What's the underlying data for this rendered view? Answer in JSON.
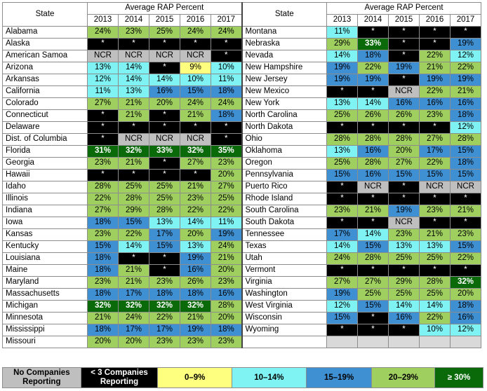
{
  "header": {
    "state_label": "State",
    "group_label": "Average RAP Percent",
    "years": [
      "2013",
      "2014",
      "2015",
      "2016",
      "2017"
    ]
  },
  "colors": {
    "ncr": "#bfbfbf",
    "lt3": "#000000",
    "b0": "#ffff7f",
    "b10": "#7ff3f3",
    "b15": "#3f8fd3",
    "b20": "#9fcf5f",
    "b30": "#0a6a0a"
  },
  "left_rows": [
    {
      "state": "Alabama",
      "values": [
        "24%",
        "23%",
        "25%",
        "24%",
        "24%"
      ]
    },
    {
      "state": "Alaska",
      "values": [
        "*",
        "*",
        "*",
        "*",
        "*"
      ]
    },
    {
      "state": "American Samoa",
      "values": [
        "NCR",
        "NCR",
        "NCR",
        "NCR",
        "*"
      ]
    },
    {
      "state": "Arizona",
      "values": [
        "13%",
        "14%",
        "*",
        "9%",
        "10%"
      ]
    },
    {
      "state": "Arkansas",
      "values": [
        "12%",
        "14%",
        "14%",
        "10%",
        "11%"
      ]
    },
    {
      "state": "California",
      "values": [
        "11%",
        "13%",
        "16%",
        "15%",
        "18%"
      ]
    },
    {
      "state": "Colorado",
      "values": [
        "27%",
        "21%",
        "20%",
        "24%",
        "24%"
      ]
    },
    {
      "state": "Connecticut",
      "values": [
        "*",
        "21%",
        "*",
        "21%",
        "18%"
      ]
    },
    {
      "state": "Delaware",
      "values": [
        "*",
        "*",
        "*",
        "*",
        "*"
      ]
    },
    {
      "state": "Dist. of Columbia",
      "values": [
        "*",
        "NCR",
        "NCR",
        "NCR",
        "*"
      ]
    },
    {
      "state": "Florida",
      "values": [
        "31%",
        "32%",
        "33%",
        "32%",
        "35%"
      ]
    },
    {
      "state": "Georgia",
      "values": [
        "23%",
        "21%",
        "*",
        "27%",
        "23%"
      ]
    },
    {
      "state": "Hawaii",
      "values": [
        "*",
        "*",
        "*",
        "*",
        "20%"
      ]
    },
    {
      "state": "Idaho",
      "values": [
        "28%",
        "25%",
        "25%",
        "21%",
        "27%"
      ]
    },
    {
      "state": "Illinois",
      "values": [
        "22%",
        "28%",
        "25%",
        "23%",
        "25%"
      ]
    },
    {
      "state": "Indiana",
      "values": [
        "27%",
        "29%",
        "28%",
        "22%",
        "22%"
      ]
    },
    {
      "state": "Iowa",
      "values": [
        "18%",
        "15%",
        "13%",
        "14%",
        "11%"
      ]
    },
    {
      "state": "Kansas",
      "values": [
        "23%",
        "22%",
        "17%",
        "20%",
        "19%"
      ]
    },
    {
      "state": "Kentucky",
      "values": [
        "15%",
        "14%",
        "15%",
        "13%",
        "24%"
      ]
    },
    {
      "state": "Louisiana",
      "values": [
        "18%",
        "*",
        "*",
        "19%",
        "21%"
      ]
    },
    {
      "state": "Maine",
      "values": [
        "18%",
        "21%",
        "*",
        "16%",
        "20%"
      ]
    },
    {
      "state": "Maryland",
      "values": [
        "23%",
        "21%",
        "23%",
        "26%",
        "23%"
      ]
    },
    {
      "state": "Massachusetts",
      "values": [
        "18%",
        "17%",
        "18%",
        "18%",
        "16%"
      ]
    },
    {
      "state": "Michigan",
      "values": [
        "32%",
        "32%",
        "32%",
        "32%",
        "28%"
      ]
    },
    {
      "state": "Minnesota",
      "values": [
        "21%",
        "24%",
        "22%",
        "21%",
        "20%"
      ]
    },
    {
      "state": "Mississippi",
      "values": [
        "18%",
        "17%",
        "17%",
        "19%",
        "18%"
      ]
    },
    {
      "state": "Missouri",
      "values": [
        "20%",
        "20%",
        "23%",
        "23%",
        "23%"
      ]
    }
  ],
  "right_rows": [
    {
      "state": "Montana",
      "values": [
        "11%",
        "*",
        "*",
        "*",
        "*"
      ]
    },
    {
      "state": "Nebraska",
      "values": [
        "29%",
        "33%",
        "*",
        "*",
        "19%"
      ]
    },
    {
      "state": "Nevada",
      "values": [
        "14%",
        "18%",
        "*",
        "22%",
        "12%"
      ]
    },
    {
      "state": "New Hampshire",
      "values": [
        "19%",
        "22%",
        "19%",
        "21%",
        "22%"
      ]
    },
    {
      "state": "New Jersey",
      "values": [
        "19%",
        "19%",
        "*",
        "19%",
        "19%"
      ]
    },
    {
      "state": "New Mexico",
      "values": [
        "*",
        "*",
        "NCR",
        "22%",
        "21%"
      ]
    },
    {
      "state": "New York",
      "values": [
        "13%",
        "14%",
        "16%",
        "16%",
        "16%"
      ]
    },
    {
      "state": "North Carolina",
      "values": [
        "25%",
        "26%",
        "26%",
        "23%",
        "18%"
      ]
    },
    {
      "state": "North Dakota",
      "values": [
        "*",
        "*",
        "*",
        "*",
        "12%"
      ]
    },
    {
      "state": "Ohio",
      "values": [
        "28%",
        "28%",
        "28%",
        "27%",
        "28%"
      ]
    },
    {
      "state": "Oklahoma",
      "values": [
        "13%",
        "16%",
        "20%",
        "17%",
        "15%"
      ]
    },
    {
      "state": "Oregon",
      "values": [
        "25%",
        "28%",
        "27%",
        "22%",
        "18%"
      ]
    },
    {
      "state": "Pennsylvania",
      "values": [
        "15%",
        "16%",
        "15%",
        "15%",
        "15%"
      ]
    },
    {
      "state": "Puerto Rico",
      "values": [
        "*",
        "NCR",
        "*",
        "NCR",
        "NCR"
      ]
    },
    {
      "state": "Rhode Island",
      "values": [
        "*",
        "*",
        "*",
        "*",
        "*"
      ]
    },
    {
      "state": "South Carolina",
      "values": [
        "23%",
        "21%",
        "19%",
        "23%",
        "21%"
      ]
    },
    {
      "state": "South Dakota",
      "values": [
        "*",
        "*",
        "NCR",
        "*",
        "*"
      ]
    },
    {
      "state": "Tennessee",
      "values": [
        "17%",
        "14%",
        "23%",
        "21%",
        "23%"
      ]
    },
    {
      "state": "Texas",
      "values": [
        "14%",
        "15%",
        "13%",
        "13%",
        "15%"
      ]
    },
    {
      "state": "Utah",
      "values": [
        "24%",
        "28%",
        "25%",
        "25%",
        "22%"
      ]
    },
    {
      "state": "Vermont",
      "values": [
        "*",
        "*",
        "*",
        "*",
        "*"
      ]
    },
    {
      "state": "Virginia",
      "values": [
        "27%",
        "27%",
        "29%",
        "28%",
        "32%"
      ]
    },
    {
      "state": "Washington",
      "values": [
        "19%",
        "25%",
        "25%",
        "25%",
        "20%"
      ]
    },
    {
      "state": "West Virginia",
      "values": [
        "12%",
        "15%",
        "14%",
        "14%",
        "18%"
      ]
    },
    {
      "state": "Wisconsin",
      "values": [
        "15%",
        "*",
        "16%",
        "22%",
        "16%"
      ]
    },
    {
      "state": "Wyoming",
      "values": [
        "*",
        "*",
        "*",
        "10%",
        "12%"
      ]
    },
    {
      "state": "",
      "values": [
        "",
        "",
        "",
        "",
        ""
      ]
    }
  ],
  "legend": [
    {
      "key": "ncr",
      "label": "No Companies Reporting"
    },
    {
      "key": "lt3",
      "label": "< 3 Companies Reporting"
    },
    {
      "key": "b0",
      "label": "0–9%"
    },
    {
      "key": "b10",
      "label": "10–14%"
    },
    {
      "key": "b15",
      "label": "15–19%"
    },
    {
      "key": "b20",
      "label": "20–29%"
    },
    {
      "key": "b30",
      "label": "≥ 30%"
    }
  ]
}
